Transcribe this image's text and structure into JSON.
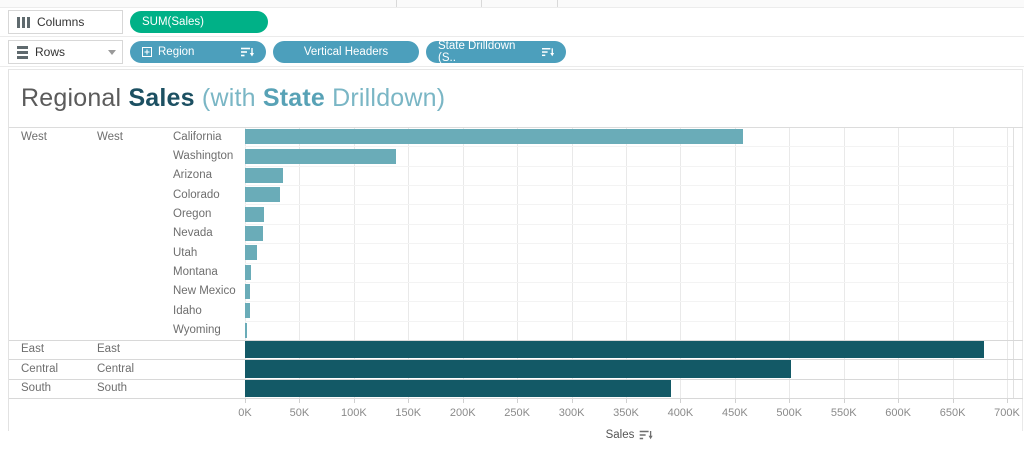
{
  "shelves": {
    "columns": {
      "label": "Columns",
      "pills": [
        {
          "label": "SUM(Sales)",
          "color": "#00b187",
          "type": "continuous-measure"
        }
      ]
    },
    "rows": {
      "label": "Rows",
      "pills": [
        {
          "label": "Region",
          "color": "#4c9fbc",
          "expand_icon": true,
          "sort_icon": true,
          "width": 136
        },
        {
          "label": "Vertical Headers",
          "color": "#4c9fbc",
          "expand_icon": false,
          "sort_icon": false,
          "width": 146
        },
        {
          "label": "State Drilldown (S..",
          "color": "#4c9fbc",
          "expand_icon": false,
          "sort_icon": true,
          "width": 140
        }
      ]
    }
  },
  "title": {
    "segments": [
      {
        "text": "Regional ",
        "color": "#5b5b5b",
        "bold": false
      },
      {
        "text": "Sales",
        "color": "#1c5062",
        "bold": true
      },
      {
        "text": " (with ",
        "color": "#7ab6c5",
        "bold": false
      },
      {
        "text": "State",
        "color": "#58a2b6",
        "bold": true
      },
      {
        "text": " Drilldown)",
        "color": "#7ab6c5",
        "bold": false
      }
    ]
  },
  "chart_data": {
    "type": "bar",
    "orientation": "horizontal",
    "title": "Regional Sales (with State Drilldown)",
    "xlabel": "Sales",
    "ylabel": "",
    "xlim": [
      0,
      707000
    ],
    "grid": "vertical",
    "sort": "descending",
    "bar_colors": {
      "state": "#6aacb8",
      "region": "#135966"
    },
    "x_axis": {
      "label": "Sales",
      "sorted": "descending",
      "tick_values": [
        0,
        50000,
        100000,
        150000,
        200000,
        250000,
        300000,
        350000,
        400000,
        450000,
        500000,
        550000,
        600000,
        650000,
        700000
      ],
      "tick_labels": [
        "0K",
        "50K",
        "100K",
        "150K",
        "200K",
        "250K",
        "300K",
        "350K",
        "400K",
        "450K",
        "500K",
        "550K",
        "600K",
        "650K",
        "700K"
      ]
    },
    "groups": [
      {
        "region": "West",
        "expanded": true,
        "states": [
          {
            "name": "California",
            "value": 457700
          },
          {
            "name": "Washington",
            "value": 138600
          },
          {
            "name": "Arizona",
            "value": 35300
          },
          {
            "name": "Colorado",
            "value": 32100
          },
          {
            "name": "Oregon",
            "value": 17400
          },
          {
            "name": "Nevada",
            "value": 16700
          },
          {
            "name": "Utah",
            "value": 11200
          },
          {
            "name": "Montana",
            "value": 5600
          },
          {
            "name": "New Mexico",
            "value": 4800
          },
          {
            "name": "Idaho",
            "value": 4400
          },
          {
            "name": "Wyoming",
            "value": 1600
          }
        ]
      },
      {
        "region": "East",
        "expanded": false,
        "value": 678800
      },
      {
        "region": "Central",
        "expanded": false,
        "value": 501200
      },
      {
        "region": "South",
        "expanded": false,
        "value": 391700
      }
    ]
  }
}
